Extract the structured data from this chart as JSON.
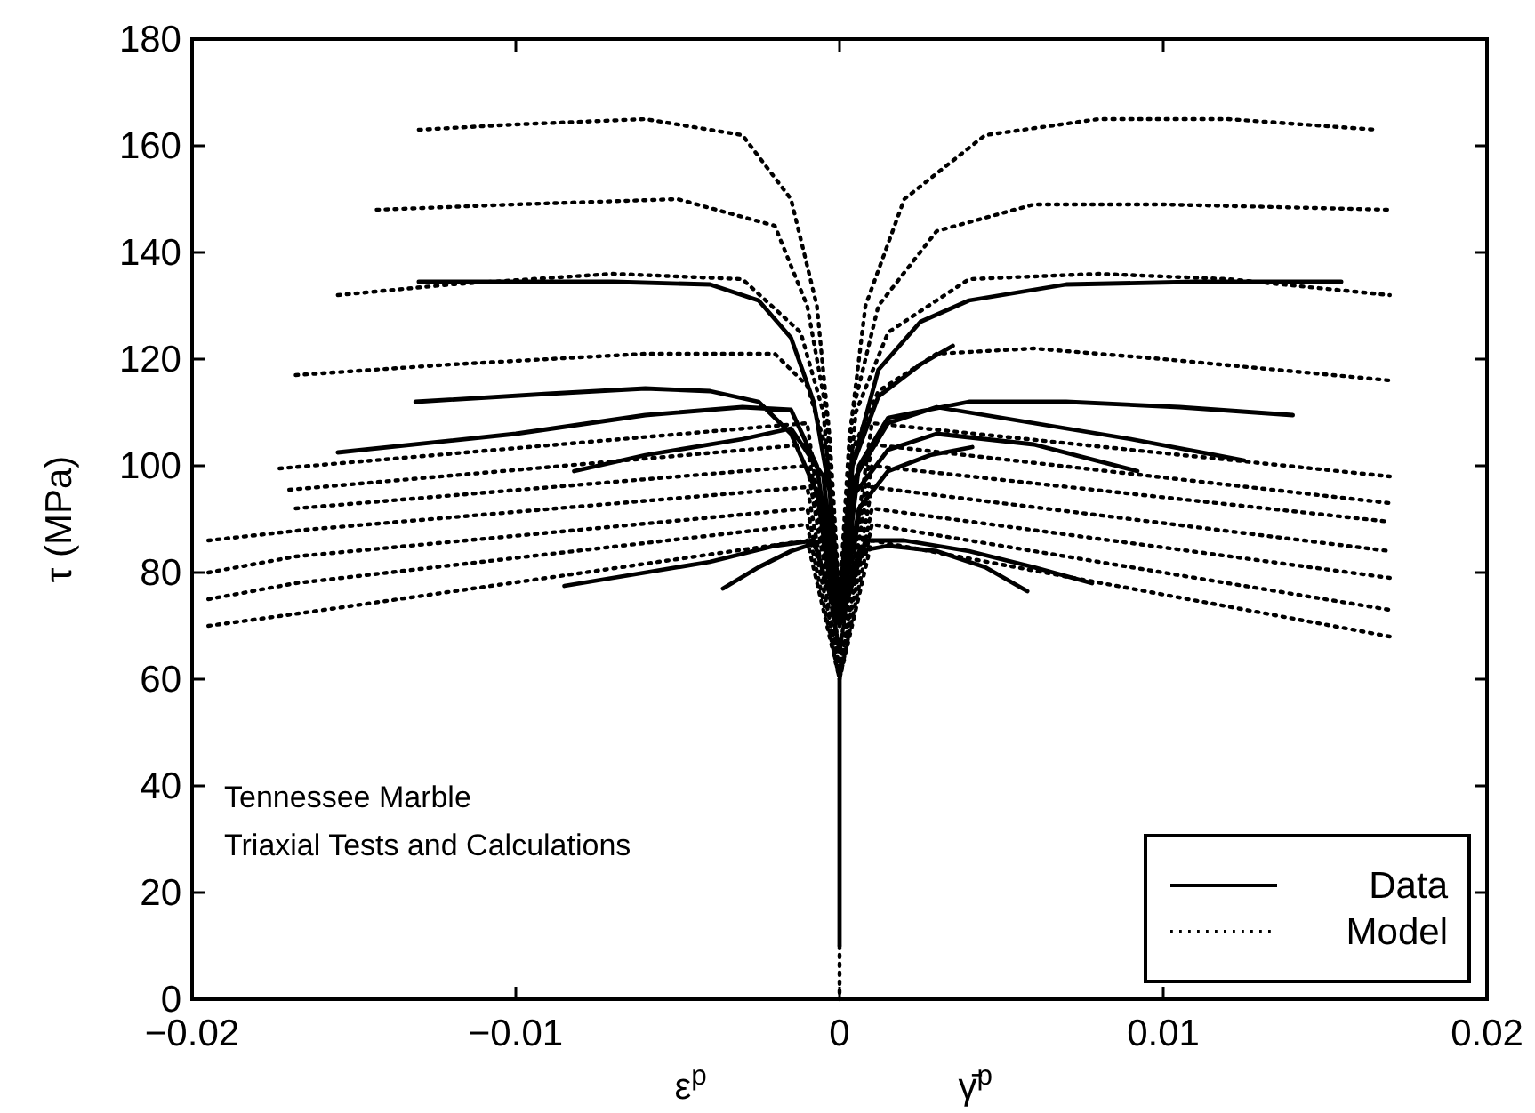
{
  "chart_data": {
    "type": "line",
    "xlabel": "ε$^{p}$",
    "ylabel": "τ (MPa)",
    "xlim": [
      -0.02,
      0.02
    ],
    "ylim": [
      0,
      180
    ],
    "xticks": [
      {
        "value": -0.02,
        "label": "−0.02"
      },
      {
        "value": -0.01,
        "label": "−0.01"
      },
      0,
      0.01,
      0.02
    ],
    "yticks": [
      0,
      20,
      40,
      60,
      80,
      100,
      120,
      140,
      160,
      180
    ],
    "grid": false,
    "legend": "bottom right",
    "marker": "none",
    "annotations": [
      "Tennessee Marble",
      "Triaxial Tests and Calculations",
      "γ̄$^{p}$"
    ],
    "series": [
      {
        "name": "Data",
        "color": "#000000",
        "line_style": "solid",
        "x": [
          -0.013,
          -0.007,
          -0.004,
          -0.0025,
          -0.0015,
          -0.0008,
          -0.0003,
          0,
          0.0004,
          0.0012,
          0.0025,
          0.004,
          0.007,
          0.011,
          0.0155,
          null,
          -0.0131,
          -0.009,
          -0.006,
          -0.004,
          -0.0025,
          -0.0015,
          -0.0007,
          0,
          0.0006,
          0.0015,
          0.004,
          0.007,
          0.0105,
          0.014,
          null,
          -0.0155,
          -0.01,
          -0.006,
          -0.003,
          -0.0015,
          -0.0007,
          0,
          0.0005,
          0.0015,
          0.003,
          0.006,
          0.009,
          0.0125,
          null,
          -0.0082,
          -0.006,
          -0.003,
          -0.0015,
          -0.0005,
          0,
          0.0005,
          0.0015,
          0.003,
          0.006,
          0.0092,
          null,
          0,
          0.0004,
          0.0012,
          0.0025,
          0.0035,
          null,
          0,
          0.0006,
          0.0015,
          0.0028,
          0.0041,
          null,
          -0.0085,
          -0.006,
          -0.004,
          -0.002,
          -0.0008,
          0,
          0.0008,
          0.002,
          0.004,
          0.006,
          0.0078,
          null,
          -0.0036,
          -0.0025,
          -0.0015,
          -0.0005,
          0,
          0.0006,
          0.0015,
          0.003,
          0.0045,
          0.0058,
          null,
          0,
          0,
          0
        ],
        "values": [
          134.5,
          134.5,
          134,
          131,
          124,
          112,
          95,
          70,
          100,
          118,
          127,
          131,
          134,
          134.5,
          134.5,
          null,
          112,
          113.5,
          114.5,
          114,
          112,
          106,
          95,
          70,
          100,
          109,
          112,
          112,
          111,
          109.5,
          null,
          102.5,
          106,
          109.5,
          111,
          110.5,
          100,
          70,
          98,
          108,
          111,
          108,
          105,
          101,
          null,
          99,
          102,
          105,
          107,
          98,
          70,
          95,
          103,
          106,
          104,
          99,
          null,
          70,
          100,
          113,
          119,
          122.5,
          null,
          70,
          92,
          99,
          102,
          103.5,
          null,
          77.5,
          80,
          82,
          85,
          86,
          70,
          86,
          86,
          84,
          81,
          78,
          null,
          77,
          81,
          84,
          86,
          70,
          84,
          85,
          84,
          81,
          76.5,
          null,
          60,
          35,
          10
        ]
      },
      {
        "name": "Model",
        "color": "#000000",
        "line_style": "dotted",
        "x": [
          -0.013,
          -0.01,
          -0.006,
          -0.003,
          -0.0015,
          -0.0007,
          -0.0003,
          0,
          0.0003,
          0.0008,
          0.002,
          0.0045,
          0.008,
          0.012,
          0.0166,
          null,
          -0.0143,
          -0.01,
          -0.005,
          -0.002,
          -0.001,
          -0.0004,
          0,
          0.0004,
          0.0012,
          0.003,
          0.006,
          0.01,
          0.017,
          null,
          -0.0155,
          -0.012,
          -0.007,
          -0.003,
          -0.0012,
          -0.0005,
          0,
          0.0005,
          0.0015,
          0.004,
          0.008,
          0.012,
          0.017,
          null,
          -0.0168,
          -0.012,
          -0.006,
          -0.002,
          -0.001,
          -0.0004,
          0,
          0.0004,
          0.0012,
          0.003,
          0.006,
          0.01,
          0.017,
          null,
          -0.0173,
          -0.001,
          0,
          0.001,
          0.017,
          null,
          -0.017,
          -0.001,
          0,
          0.001,
          0.017,
          null,
          -0.0168,
          -0.001,
          0,
          0.001,
          0.017,
          null,
          -0.0195,
          -0.0165,
          -0.001,
          0,
          0.001,
          0.017,
          null,
          -0.0195,
          -0.0168,
          -0.001,
          0,
          0.001,
          0.017,
          null,
          -0.0195,
          -0.0168,
          -0.001,
          0,
          0.001,
          0.017,
          null,
          -0.0195,
          -0.0165,
          -0.001,
          0,
          0.001,
          0.017,
          null,
          0,
          0
        ],
        "values": [
          163,
          164,
          165,
          162,
          150,
          130,
          105,
          75,
          105,
          130,
          150,
          162,
          165,
          165,
          163,
          null,
          148,
          149,
          150,
          145,
          130,
          110,
          75,
          110,
          130,
          144,
          149,
          149,
          148,
          null,
          132,
          134,
          136,
          135,
          125,
          110,
          75,
          110,
          125,
          135,
          136,
          135,
          132,
          null,
          117,
          119,
          121,
          121,
          115,
          103,
          75,
          103,
          114,
          121,
          122,
          120,
          116,
          null,
          99.5,
          108,
          65,
          108,
          98,
          null,
          95.5,
          104,
          65,
          104,
          93,
          null,
          92,
          100,
          65,
          100,
          89.5,
          null,
          86,
          88,
          96,
          62,
          96,
          84,
          null,
          80,
          83,
          92,
          62,
          92,
          79,
          null,
          75,
          78,
          89,
          60,
          89,
          73,
          null,
          70,
          72.5,
          86,
          60,
          86,
          68,
          null,
          10,
          0
        ]
      }
    ]
  }
}
